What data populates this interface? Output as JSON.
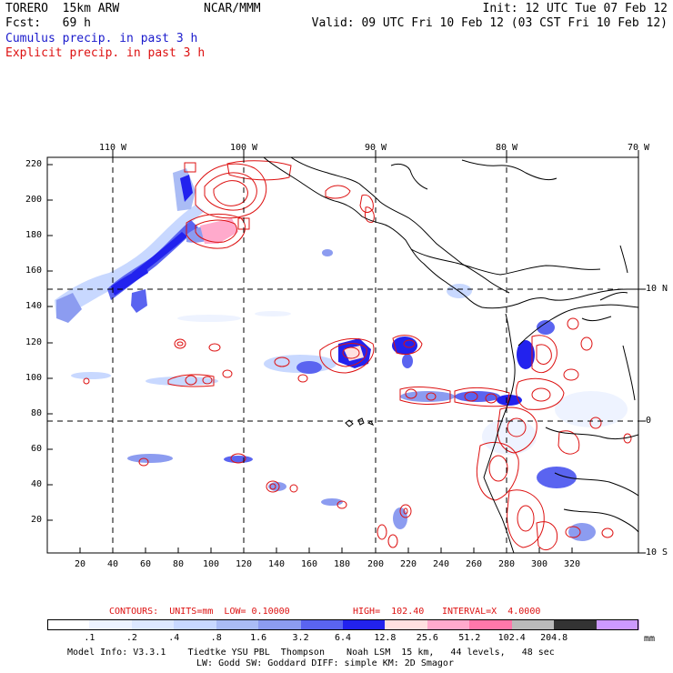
{
  "header": {
    "model": "TORERO  15km ARW",
    "center": "NCAR/MMM",
    "init": "Init: 12 UTC Tue 07 Feb 12",
    "fcst": "Fcst:   69 h",
    "valid": "Valid: 09 UTC Fri 10 Feb 12 (03 CST Fri 10 Feb 12)",
    "legend_cumulus": "Cumulus precip. in past 3 h",
    "legend_explicit": "Explicit precip. in past 3 h"
  },
  "colors": {
    "cumulus": "#1a1acc",
    "explicit": "#dd1111",
    "coast": "#000000"
  },
  "axes": {
    "top_lon_labels": [
      "110 W",
      "100 W",
      "90 W",
      "80 W",
      "70 W"
    ],
    "right_lat_labels": [
      "10 N",
      "0",
      "10 S"
    ],
    "left_ticks": [
      "220",
      "200",
      "180",
      "160",
      "140",
      "120",
      "100",
      "80",
      "60",
      "40",
      "20"
    ],
    "bottom_ticks": [
      "20",
      "40",
      "60",
      "80",
      "100",
      "120",
      "140",
      "160",
      "180",
      "200",
      "220",
      "240",
      "260",
      "280",
      "300",
      "320"
    ]
  },
  "contour_info": {
    "contours": "CONTOURS:  UNITS=mm  LOW= 0.10000",
    "high": "HIGH=  102.40",
    "interval": "INTERVAL=X  4.0000"
  },
  "colorbar": {
    "colors": [
      "#ffffff",
      "#eef3ff",
      "#dde8ff",
      "#c8d8ff",
      "#aabcf5",
      "#8c9cf0",
      "#5a64f0",
      "#2222ee",
      "#ffe0e0",
      "#ffaacc",
      "#ff77aa",
      "#bbbbbb",
      "#333333",
      "#cc99ff"
    ],
    "labels": [
      ".1",
      ".2",
      ".4",
      ".8",
      "1.6",
      "3.2",
      "6.4",
      "12.8",
      "25.6",
      "51.2",
      "102.4",
      "204.8"
    ],
    "units": "mm"
  },
  "footer": {
    "line1": "Model Info: V3.3.1    Tiedtke YSU PBL  Thompson    Noah LSM  15 km,   44 levels,   48 sec",
    "line2": "LW: Godd SW: Goddard DIFF: simple KM: 2D Smagor"
  }
}
